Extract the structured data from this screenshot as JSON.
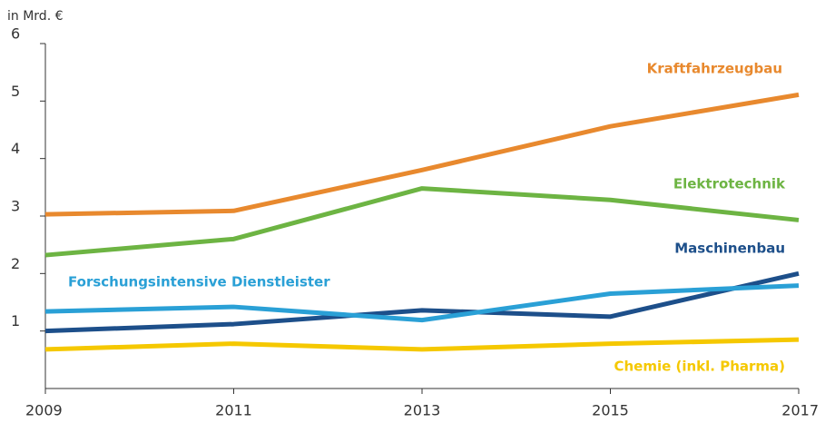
{
  "chart_data": {
    "type": "line",
    "y_axis_label": "in Mrd. €",
    "x": [
      2009,
      2011,
      2013,
      2015,
      2017
    ],
    "xlim": [
      2009,
      2017
    ],
    "xticks": [
      2009,
      2011,
      2013,
      2015,
      2017
    ],
    "ylim": [
      0,
      6
    ],
    "yticks": [
      1,
      2,
      3,
      4,
      5,
      6
    ],
    "grid": false,
    "series": [
      {
        "name": "Kraftfahrzeugbau",
        "color": "#e8892e",
        "values": [
          3.03,
          3.09,
          3.8,
          4.56,
          5.11
        ]
      },
      {
        "name": "Elektrotechnik",
        "color": "#6db443",
        "values": [
          2.32,
          2.6,
          3.48,
          3.28,
          2.93
        ]
      },
      {
        "name": "Maschinenbau",
        "color": "#1d4f8a",
        "values": [
          1.0,
          1.12,
          1.36,
          1.25,
          2.0
        ]
      },
      {
        "name": "Forschungsintensive Dienstleister",
        "color": "#2aa0d6",
        "values": [
          1.34,
          1.42,
          1.19,
          1.65,
          1.79
        ]
      },
      {
        "name": "Chemie (inkl. Pharma)",
        "color": "#f5c800",
        "values": [
          0.68,
          0.78,
          0.68,
          0.78,
          0.85
        ]
      }
    ]
  }
}
